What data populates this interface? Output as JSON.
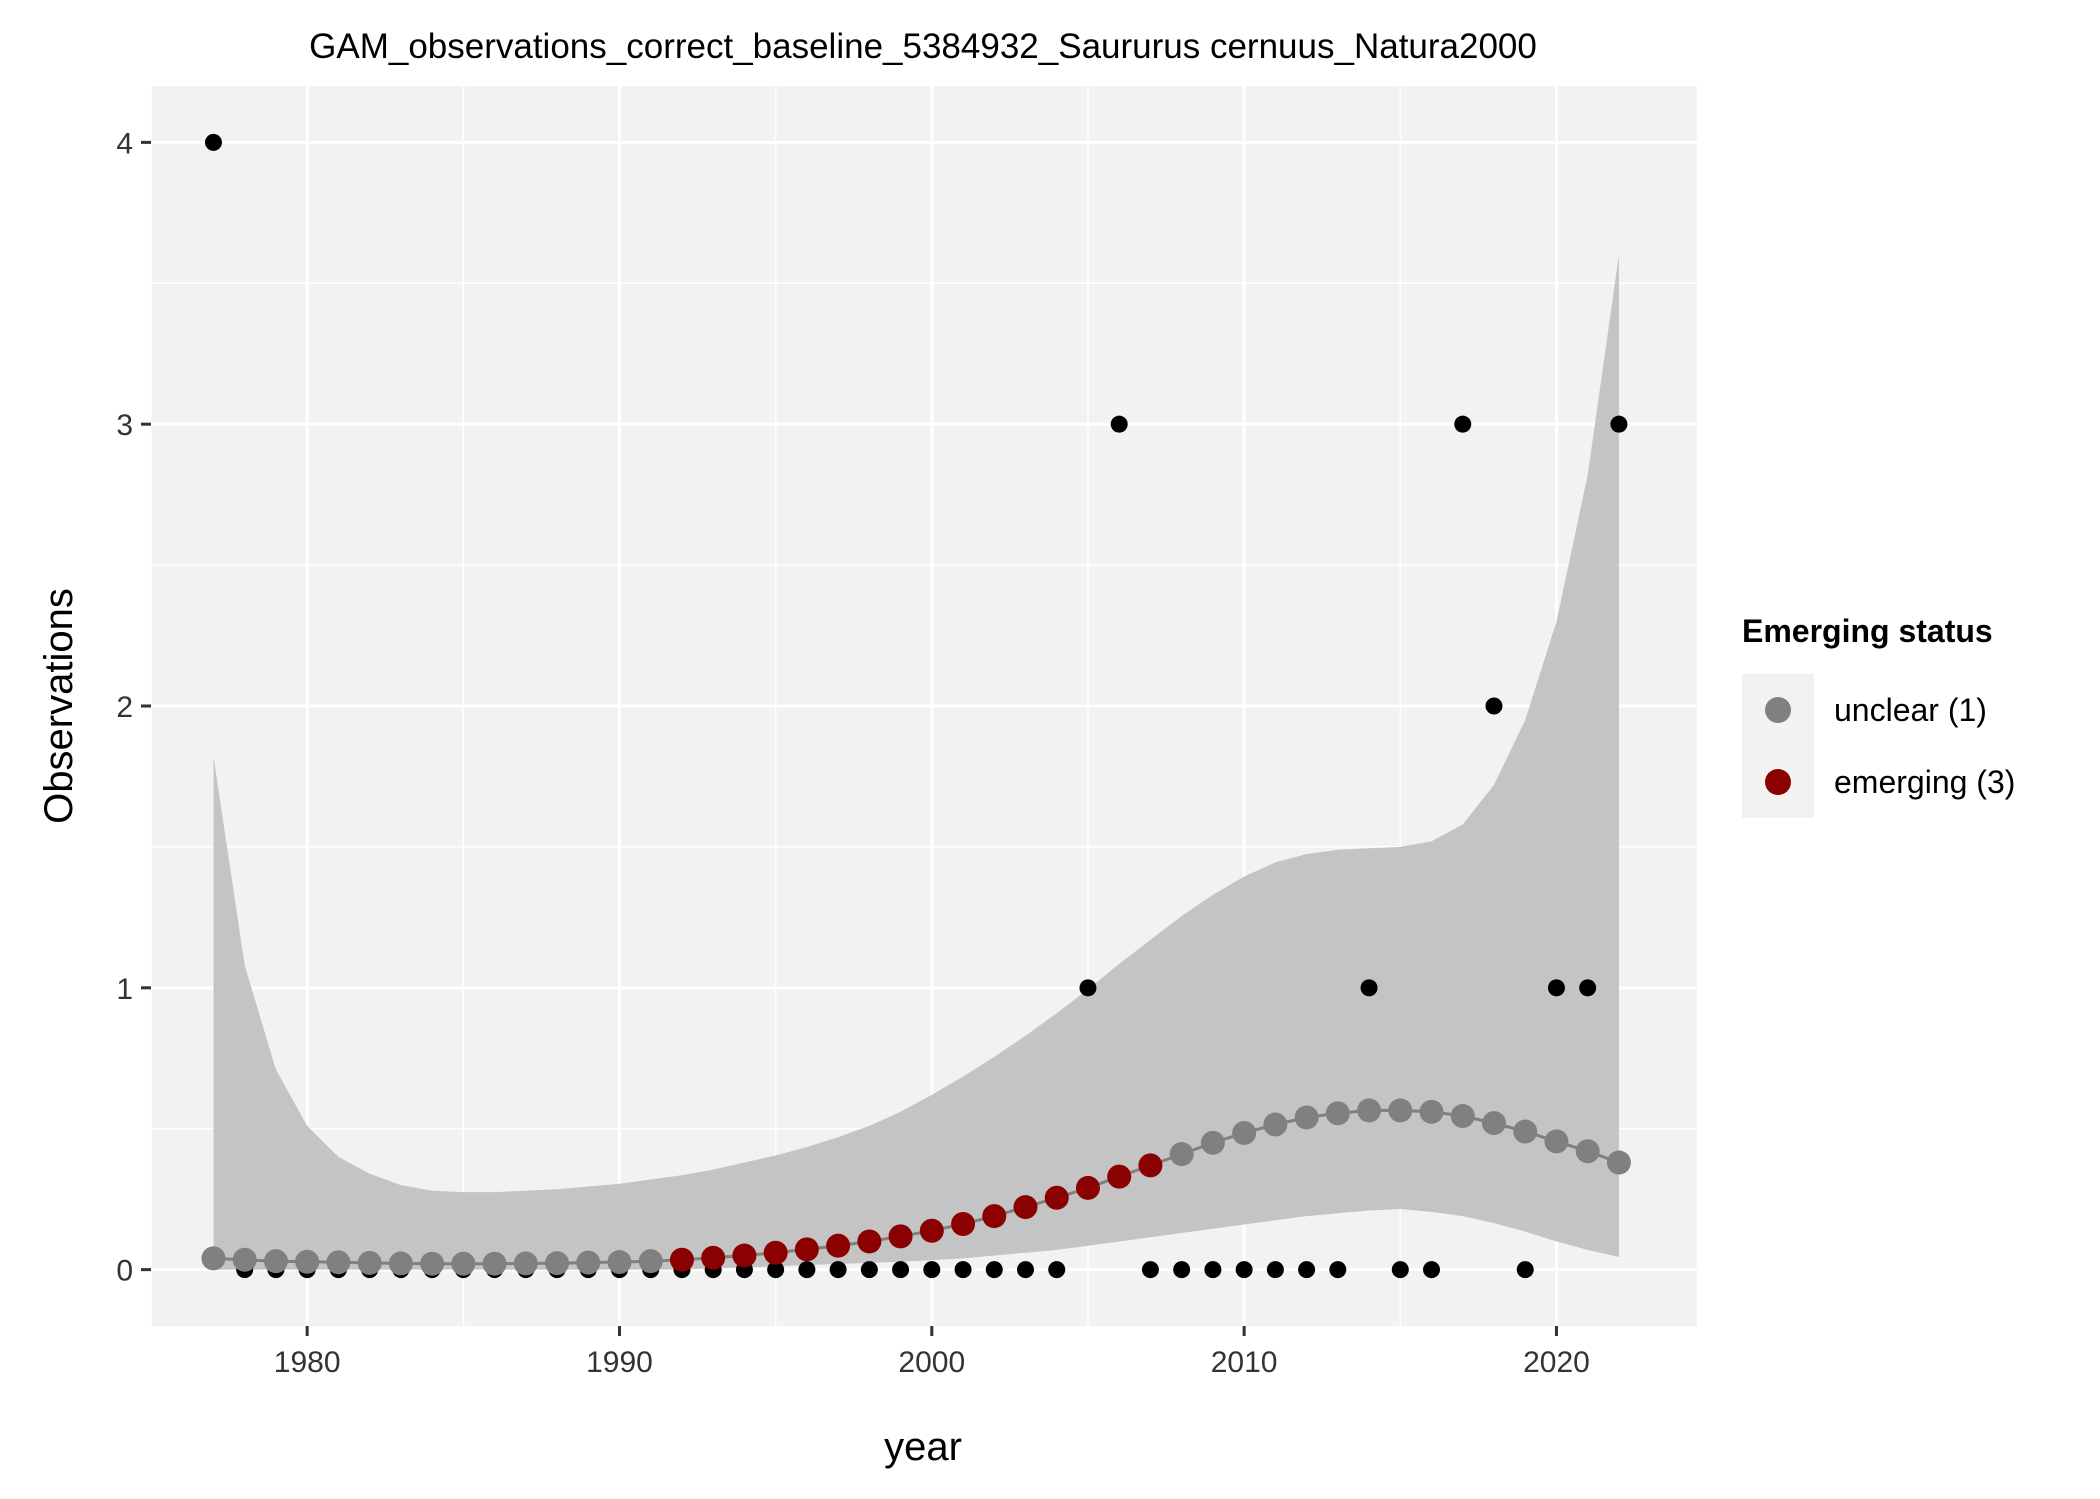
{
  "chart_data": {
    "type": "scatter",
    "title": "GAM_observations_correct_baseline_5384932_Saururus cernuus_Natura2000",
    "xlabel": "year",
    "ylabel": "Observations",
    "xlim": [
      1975,
      2024.5
    ],
    "ylim": [
      -0.2,
      4.2
    ],
    "x_ticks": [
      1980,
      1990,
      2000,
      2010,
      2020
    ],
    "y_ticks": [
      0,
      1,
      2,
      3,
      4
    ],
    "grid": true,
    "legend": {
      "title": "Emerging status",
      "position": "right",
      "entries": [
        {
          "label": "unclear (1)",
          "color": "#808080"
        },
        {
          "label": "emerging (3)",
          "color": "#8b0000"
        }
      ]
    },
    "colors": {
      "panel": "#f2f2f2",
      "grid": "#ffffff",
      "ribbon": "#c4c4c4",
      "observed": "#000000",
      "unclear": "#808080",
      "emerging": "#8b0000"
    },
    "observed": {
      "x": [
        1977,
        1978,
        1979,
        1980,
        1981,
        1982,
        1983,
        1984,
        1985,
        1986,
        1987,
        1988,
        1989,
        1990,
        1991,
        1992,
        1993,
        1994,
        1995,
        1996,
        1997,
        1998,
        1999,
        2000,
        2001,
        2002,
        2003,
        2004,
        2005,
        2006,
        2007,
        2008,
        2009,
        2010,
        2011,
        2012,
        2013,
        2014,
        2015,
        2016,
        2017,
        2018,
        2019,
        2020,
        2021,
        2022
      ],
      "y": [
        4,
        0,
        0,
        0,
        0,
        0,
        0,
        0,
        0,
        0,
        0,
        0,
        0,
        0,
        0,
        0,
        0,
        0,
        0,
        0,
        0,
        0,
        0,
        0,
        0,
        0,
        0,
        0,
        1,
        3,
        0,
        0,
        0,
        0,
        0,
        0,
        0,
        1,
        0,
        0,
        3,
        2,
        0,
        1,
        1,
        3
      ]
    },
    "fit": {
      "x": [
        1977,
        1978,
        1979,
        1980,
        1981,
        1982,
        1983,
        1984,
        1985,
        1986,
        1987,
        1988,
        1989,
        1990,
        1991,
        1992,
        1993,
        1994,
        1995,
        1996,
        1997,
        1998,
        1999,
        2000,
        2001,
        2002,
        2003,
        2004,
        2005,
        2006,
        2007,
        2008,
        2009,
        2010,
        2011,
        2012,
        2013,
        2014,
        2015,
        2016,
        2017,
        2018,
        2019,
        2020,
        2021,
        2022
      ],
      "y": [
        0.04,
        0.035,
        0.03,
        0.028,
        0.026,
        0.024,
        0.022,
        0.021,
        0.021,
        0.021,
        0.022,
        0.023,
        0.025,
        0.027,
        0.03,
        0.035,
        0.042,
        0.05,
        0.06,
        0.072,
        0.085,
        0.1,
        0.118,
        0.138,
        0.162,
        0.19,
        0.222,
        0.255,
        0.29,
        0.33,
        0.37,
        0.41,
        0.45,
        0.485,
        0.515,
        0.54,
        0.555,
        0.565,
        0.565,
        0.56,
        0.545,
        0.52,
        0.49,
        0.455,
        0.42,
        0.38
      ],
      "lower": [
        0.0,
        0.0,
        0.0,
        0.0,
        0.0,
        0.0,
        0.0,
        0.0,
        0.0,
        0.0,
        0.0,
        0.0,
        0.0,
        0.0,
        0.0,
        0.0,
        0.005,
        0.008,
        0.012,
        0.016,
        0.02,
        0.024,
        0.028,
        0.033,
        0.04,
        0.05,
        0.06,
        0.07,
        0.085,
        0.1,
        0.115,
        0.13,
        0.145,
        0.16,
        0.175,
        0.19,
        0.2,
        0.21,
        0.215,
        0.205,
        0.19,
        0.165,
        0.135,
        0.1,
        0.07,
        0.045
      ],
      "upper": [
        1.82,
        1.08,
        0.71,
        0.51,
        0.4,
        0.34,
        0.3,
        0.28,
        0.275,
        0.275,
        0.28,
        0.285,
        0.295,
        0.305,
        0.32,
        0.335,
        0.355,
        0.38,
        0.405,
        0.435,
        0.47,
        0.51,
        0.56,
        0.62,
        0.685,
        0.755,
        0.83,
        0.91,
        0.995,
        1.085,
        1.17,
        1.255,
        1.33,
        1.395,
        1.445,
        1.475,
        1.49,
        1.495,
        1.5,
        1.52,
        1.58,
        1.72,
        1.95,
        2.3,
        2.82,
        3.6
      ],
      "status": [
        "unclear",
        "unclear",
        "unclear",
        "unclear",
        "unclear",
        "unclear",
        "unclear",
        "unclear",
        "unclear",
        "unclear",
        "unclear",
        "unclear",
        "unclear",
        "unclear",
        "unclear",
        "emerging",
        "emerging",
        "emerging",
        "emerging",
        "emerging",
        "emerging",
        "emerging",
        "emerging",
        "emerging",
        "emerging",
        "emerging",
        "emerging",
        "emerging",
        "emerging",
        "emerging",
        "emerging",
        "unclear",
        "unclear",
        "unclear",
        "unclear",
        "unclear",
        "unclear",
        "unclear",
        "unclear",
        "unclear",
        "unclear",
        "unclear",
        "unclear",
        "unclear",
        "unclear",
        "unclear"
      ]
    }
  }
}
